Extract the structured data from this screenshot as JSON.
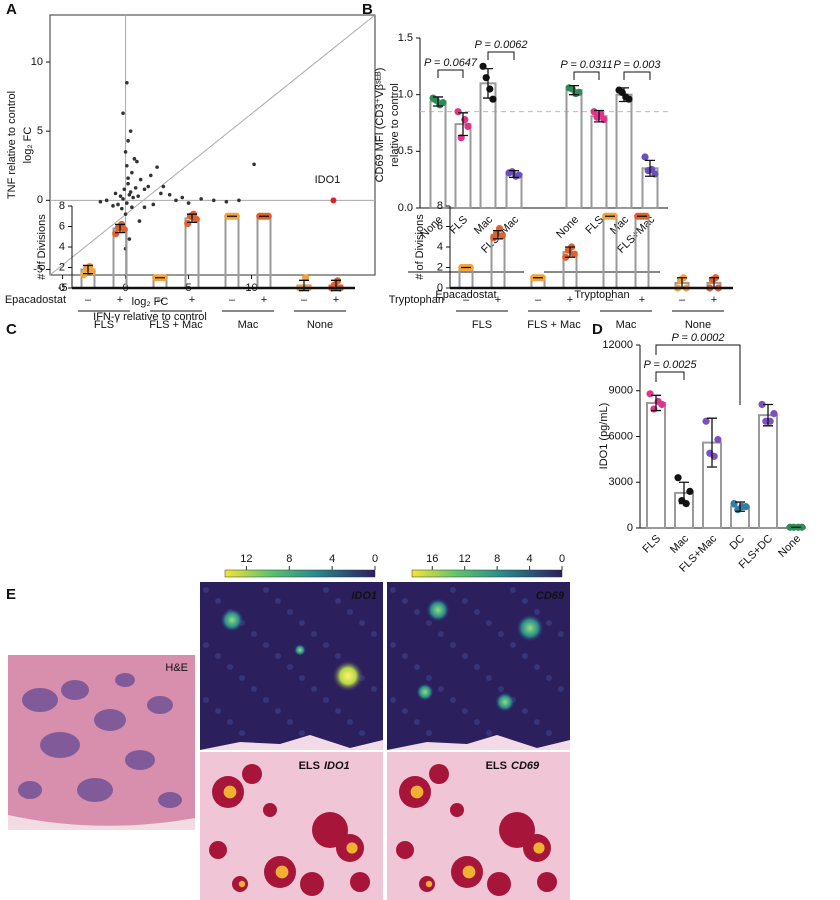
{
  "chart_data": [
    {
      "type": "scatter",
      "label": "A",
      "x": [
        -0.2,
        0.1,
        0.3,
        -0.4,
        0.5,
        -0.1,
        0.2,
        0.0,
        -0.3,
        0.4,
        0.6,
        -0.6,
        0.8,
        -0.8,
        1.0,
        1.2,
        -1.0,
        1.5,
        -1.5,
        2.0,
        2.5,
        3.0,
        -2.0,
        0.1,
        0.0,
        0.2,
        -0.1,
        0.3,
        0.5,
        0.7,
        1.5,
        2.2,
        3.5,
        4.0,
        4.5,
        5.0,
        6.0,
        7.0,
        8.0,
        9.0,
        0.1,
        -0.2,
        0.4,
        1.1,
        0.9,
        0.0,
        0.2,
        10.2,
        1.8,
        2.8
      ],
      "y": [
        0.1,
        -0.2,
        0.4,
        0.3,
        -0.5,
        0.8,
        1.2,
        -1.0,
        -0.6,
        0.6,
        0.2,
        -0.3,
        0.9,
        0.5,
        0.3,
        1.5,
        -0.4,
        0.8,
        0.0,
        1.8,
        2.4,
        1.0,
        -0.1,
        2.5,
        3.5,
        4.3,
        -2.0,
        -2.8,
        2.0,
        3.0,
        -0.5,
        -0.3,
        0.4,
        0.0,
        0.2,
        -0.2,
        0.1,
        0.0,
        -0.1,
        0.0,
        8.5,
        6.3,
        5.0,
        -1.5,
        2.8,
        -3.5,
        1.6,
        2.6,
        1.0,
        0.5
      ],
      "color": "#333333",
      "highlight": {
        "name": "IDO1",
        "x": 16.5,
        "y": 0,
        "color": "#e0202a"
      },
      "xlim": [
        -6,
        19.8
      ],
      "ylim": [
        -5.4,
        13.4
      ],
      "xticks": [
        -5,
        0,
        5,
        10
      ],
      "yticks": [
        -5,
        0,
        5,
        10
      ],
      "xlabel": "log₂ FC",
      "xlabel2": "IFN-γ relative to control",
      "ylabel": "log₂ FC",
      "ylabel2": "TNF relative to control"
    },
    {
      "type": "bar",
      "label": "B",
      "ylabel": "CD69 MFI (CD3⁺Vβˢᴱᴮ)",
      "ylabel2": "relative to control",
      "colors": [
        "#2e8b57",
        "#e0338a",
        "#111111",
        "#6a4fbf"
      ],
      "reference_line": 0.85,
      "ylim": [
        0,
        1.5
      ],
      "yticks": [
        {
          "value": 0,
          "label": "0.0"
        },
        0.5,
        {
          "value": 1,
          "label": "1.0"
        },
        1.5
      ],
      "groups": [
        {
          "name": "Epacadostat",
          "categories": [
            "None",
            "FLS",
            "Mac",
            "FLS+Mac"
          ],
          "values": [
            0.94,
            0.74,
            1.1,
            0.3
          ],
          "errors": [
            0.04,
            0.1,
            0.13,
            0.03
          ],
          "points": [
            [
              0.97,
              0.93,
              0.95,
              0.91
            ],
            [
              0.85,
              0.72,
              0.62,
              0.78
            ],
            [
              1.25,
              0.96,
              1.15,
              1.05
            ],
            [
              0.31,
              0.29,
              0.32,
              0.28
            ]
          ],
          "annotations": [
            "P = 0.0647",
            "P = 0.0062"
          ]
        },
        {
          "name": "Tryptophan",
          "categories": [
            "None",
            "FLS",
            "Mac",
            "FLS+Mac"
          ],
          "values": [
            1.04,
            0.81,
            1.0,
            0.35
          ],
          "errors": [
            0.04,
            0.05,
            0.06,
            0.07
          ],
          "points": [
            [
              1.06,
              1.02,
              1.05,
              1.01
            ],
            [
              0.85,
              0.78,
              0.8,
              0.83
            ],
            [
              1.04,
              0.96,
              1.02,
              0.98
            ],
            [
              0.45,
              0.3,
              0.33,
              0.34
            ]
          ],
          "annotations": [
            "P = 0.0311",
            "P = 0.003"
          ]
        }
      ]
    },
    {
      "type": "grouped-bar",
      "label": "C",
      "ylabel": "# of Divisions",
      "row_label": "Epacadostat",
      "categories": [
        "FLS",
        "FLS + Mac",
        "Mac",
        "None"
      ],
      "conditions": [
        "–",
        "+"
      ],
      "values": [
        [
          1.8,
          5.8
        ],
        [
          1,
          6.8
        ],
        [
          7,
          7
        ],
        [
          0.25,
          0.25
        ]
      ],
      "errors": [
        [
          0.4,
          0.4
        ],
        [
          0,
          0.4
        ],
        [
          0,
          0
        ],
        [
          0.5,
          0.5
        ]
      ],
      "points": [
        [
          [
            1.3,
            1.6,
            1.9,
            2.1
          ],
          [
            5.3,
            5.7,
            5.9,
            6.2
          ]
        ],
        [
          [
            1,
            1,
            1,
            1
          ],
          [
            6.3,
            6.7,
            7,
            7.2
          ]
        ],
        [
          [
            7,
            7,
            7,
            7
          ],
          [
            7,
            7,
            7,
            7
          ]
        ],
        [
          [
            0,
            0,
            0,
            1
          ],
          [
            0,
            0,
            0.3,
            0.7
          ]
        ]
      ],
      "colors": [
        "#f2a33a",
        "#e2602b"
      ],
      "ylim": [
        0,
        8
      ],
      "yticks": [
        0,
        2,
        4,
        6,
        8
      ]
    },
    {
      "type": "grouped-bar",
      "ylabel": "# of Divisions",
      "row_label": "Tryptophan",
      "categories": [
        "FLS",
        "FLS + Mac",
        "Mac",
        "None"
      ],
      "conditions": [
        "–",
        "+"
      ],
      "values": [
        [
          2,
          5.2
        ],
        [
          1,
          3.5
        ],
        [
          7,
          7
        ],
        [
          0.5,
          0.5
        ]
      ],
      "errors": [
        [
          0,
          0.4
        ],
        [
          0,
          0.5
        ],
        [
          0,
          0
        ],
        [
          0.5,
          0.5
        ]
      ],
      "points": [
        [
          [
            2,
            2,
            2,
            2
          ],
          [
            4.9,
            5.1,
            5.3,
            5.8
          ]
        ],
        [
          [
            1,
            1,
            1,
            1
          ],
          [
            3,
            3.3,
            3.7,
            4
          ]
        ],
        [
          [
            7,
            7,
            7,
            7
          ],
          [
            7,
            7,
            7,
            7
          ]
        ],
        [
          [
            0,
            0,
            0.8,
            1
          ],
          [
            0,
            0,
            0.8,
            1
          ]
        ]
      ],
      "colors": [
        "#f2a33a",
        "#e2602b"
      ],
      "ylim": [
        0,
        8
      ],
      "yticks": [
        0,
        2,
        4,
        6,
        8
      ]
    },
    {
      "type": "bar",
      "label": "D",
      "ylabel": "IDO1 (pg/mL)",
      "categories": [
        "FLS",
        "Mac",
        "FLS+Mac",
        "DC",
        "FLS+DC",
        "None"
      ],
      "values": [
        8200,
        2300,
        5600,
        1400,
        7400,
        50
      ],
      "errors": [
        500,
        700,
        1600,
        300,
        700,
        0
      ],
      "points": [
        [
          8800,
          8100,
          7800,
          8300
        ],
        [
          3300,
          2400,
          1800,
          1600
        ],
        [
          7000,
          5800,
          4900,
          4700
        ],
        [
          1600,
          1400,
          1200,
          1400
        ],
        [
          8100,
          7500,
          7000,
          7000
        ],
        [
          50,
          50,
          50,
          50
        ]
      ],
      "colors": [
        "#e0338a",
        "#111111",
        "#7b4fc0",
        "#2f7fa8",
        "#7b4fc0",
        "#2e8b57"
      ],
      "annotations": [
        "P = 0.0025",
        "P = 0.0002"
      ],
      "ylim": [
        0,
        12000
      ],
      "yticks": [
        0,
        3000,
        6000,
        9000,
        12000
      ]
    }
  ],
  "panel_e": {
    "label": "E",
    "he_label": "H&E",
    "els_label": "ELS",
    "maps": [
      {
        "gene": "IDO1",
        "colorbar_lim": [
          14,
          0
        ],
        "colorbar_ticks": [
          12,
          8,
          4,
          0
        ]
      },
      {
        "gene": "CD69",
        "colorbar_lim": [
          18.5,
          0
        ],
        "colorbar_ticks": [
          16,
          12,
          8,
          4,
          0
        ]
      }
    ]
  }
}
